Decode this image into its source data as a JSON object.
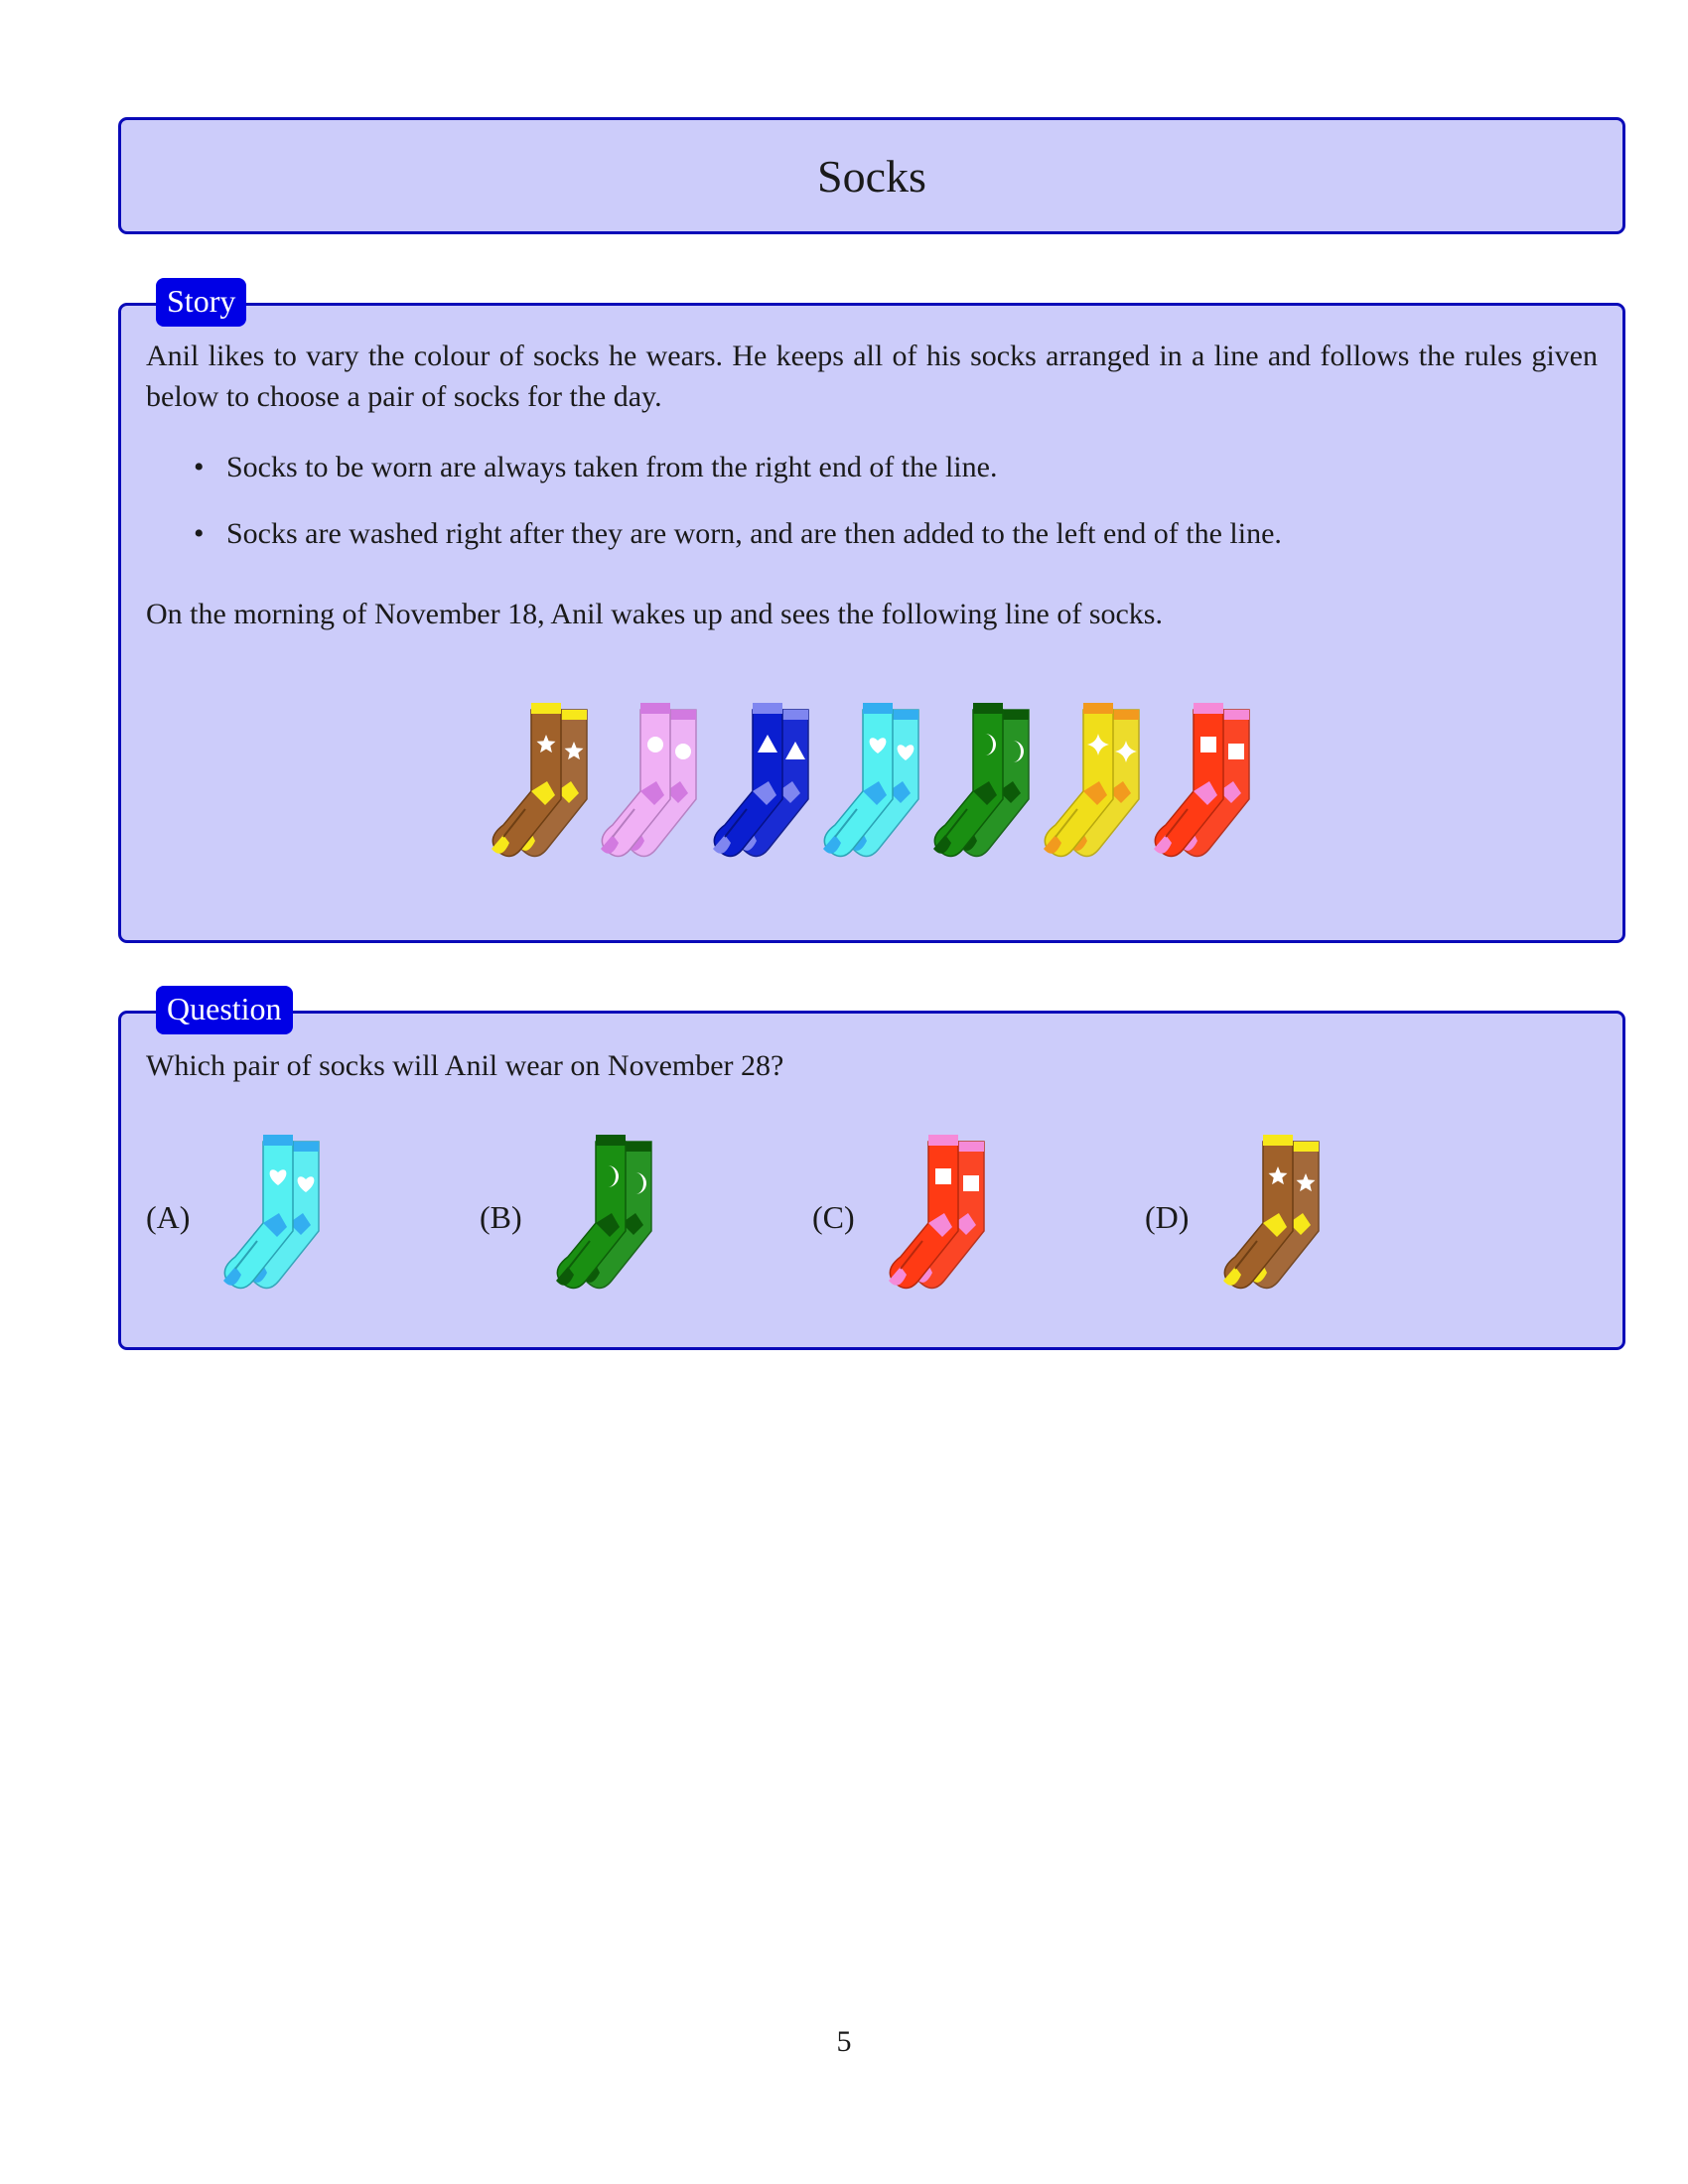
{
  "title": "Socks",
  "story": {
    "tab": "Story",
    "paragraph1": "Anil likes to vary the colour of socks he wears. He keeps all of his socks arranged in a line and follows the rules given below to choose a pair of socks for the day.",
    "bullets": [
      "Socks to be worn are always taken from the right end of the line.",
      "Socks are washed right after they are worn, and are then added to the left end of the line."
    ],
    "paragraph2": "On the morning of November 18, Anil wakes up and sees the following line of socks.",
    "socks": [
      {
        "body": "#a0612a",
        "accent": "#f7e81a",
        "shadow": "#6e3f14",
        "symbol": "star",
        "symbol_color": "#ffffff"
      },
      {
        "body": "#f0b0f5",
        "accent": "#d27ae0",
        "shadow": "#b67cc0",
        "symbol": "circle",
        "symbol_color": "#ffffff"
      },
      {
        "body": "#0a1ed0",
        "accent": "#7f86f0",
        "shadow": "#061289",
        "symbol": "triangle",
        "symbol_color": "#ffffff"
      },
      {
        "body": "#55f0f2",
        "accent": "#33aef0",
        "shadow": "#2aa3b5",
        "symbol": "heart",
        "symbol_color": "#ffffff"
      },
      {
        "body": "#1a8f12",
        "accent": "#0c5a08",
        "shadow": "#0d5e09",
        "symbol": "moon",
        "symbol_color": "#ffffff"
      },
      {
        "body": "#f0de1a",
        "accent": "#f29a1e",
        "shadow": "#b9a80e",
        "symbol": "sparkle",
        "symbol_color": "#ffffff"
      },
      {
        "body": "#ff3a14",
        "accent": "#f58ad8",
        "shadow": "#b8280d",
        "symbol": "square",
        "symbol_color": "#ffffff"
      }
    ]
  },
  "question": {
    "tab": "Question",
    "text": "Which pair of socks will Anil wear on November 28?",
    "options": [
      {
        "label": "(A)",
        "body": "#55f0f2",
        "accent": "#33aef0",
        "shadow": "#2aa3b5",
        "symbol": "heart",
        "symbol_color": "#ffffff"
      },
      {
        "label": "(B)",
        "body": "#1a8f12",
        "accent": "#0c5a08",
        "shadow": "#0d5e09",
        "symbol": "moon",
        "symbol_color": "#ffffff"
      },
      {
        "label": "(C)",
        "body": "#ff3a14",
        "accent": "#f58ad8",
        "shadow": "#b8280d",
        "symbol": "square",
        "symbol_color": "#ffffff"
      },
      {
        "label": "(D)",
        "body": "#a0612a",
        "accent": "#f7e81a",
        "shadow": "#6e3f14",
        "symbol": "star",
        "symbol_color": "#ffffff"
      }
    ]
  },
  "page_number": "5"
}
